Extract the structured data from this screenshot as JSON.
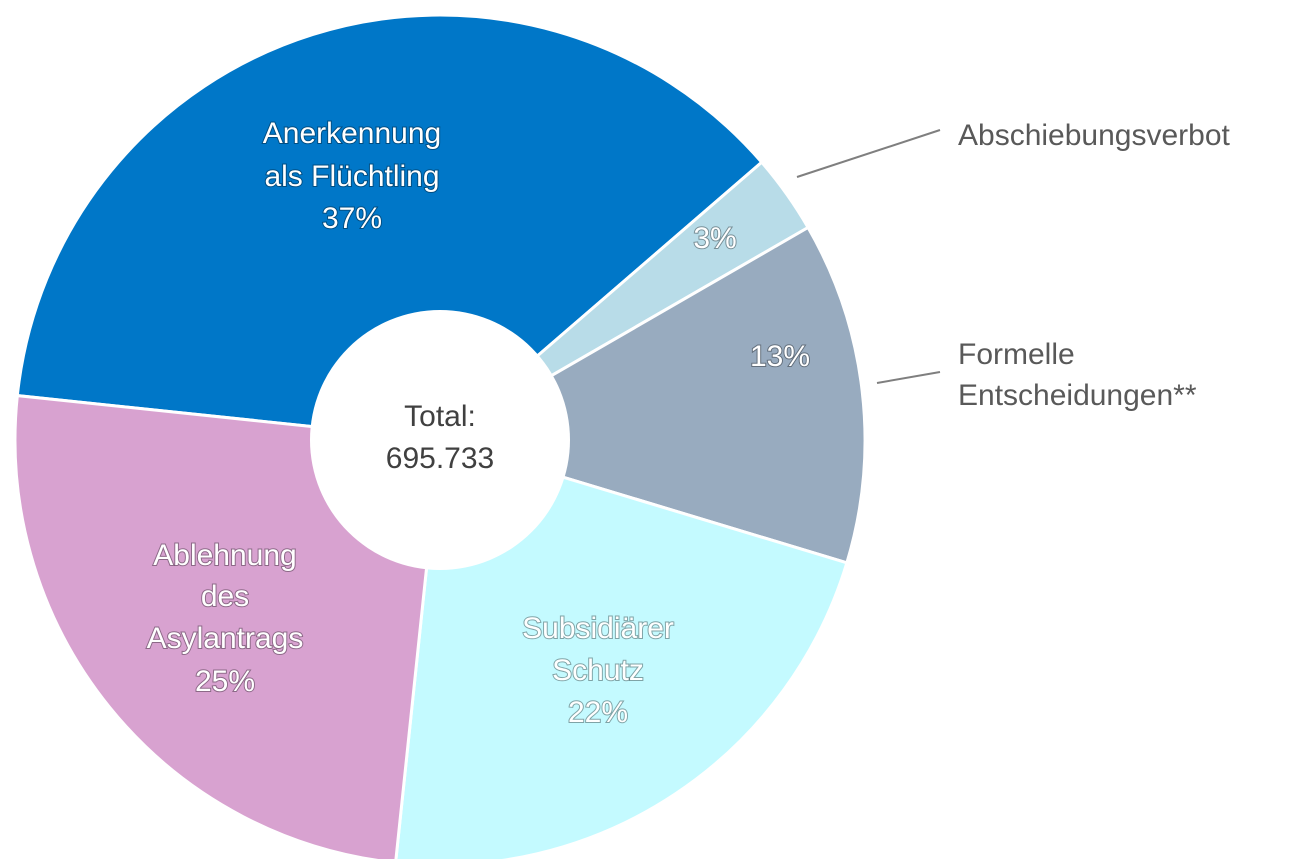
{
  "chart_data": {
    "type": "donut",
    "categories": [
      [
        "Anerkennung",
        "als Flüchtling"
      ],
      [
        "Abschiebungsverbot"
      ],
      [
        "Formelle",
        "Entscheidungen**"
      ],
      [
        "Subsidiärer",
        "Schutz"
      ],
      [
        "Ablehnung",
        "des",
        "Asylantrags"
      ]
    ],
    "values": [
      37,
      3,
      13,
      22,
      25
    ],
    "value_labels": [
      "37%",
      "3%",
      "13%",
      "22%",
      "25%"
    ],
    "colors": [
      "#0077c8",
      "#b8dce8",
      "#98abbf",
      "#c4faff",
      "#d8a2d0"
    ],
    "center_label": [
      "Total:",
      "695.733"
    ]
  }
}
